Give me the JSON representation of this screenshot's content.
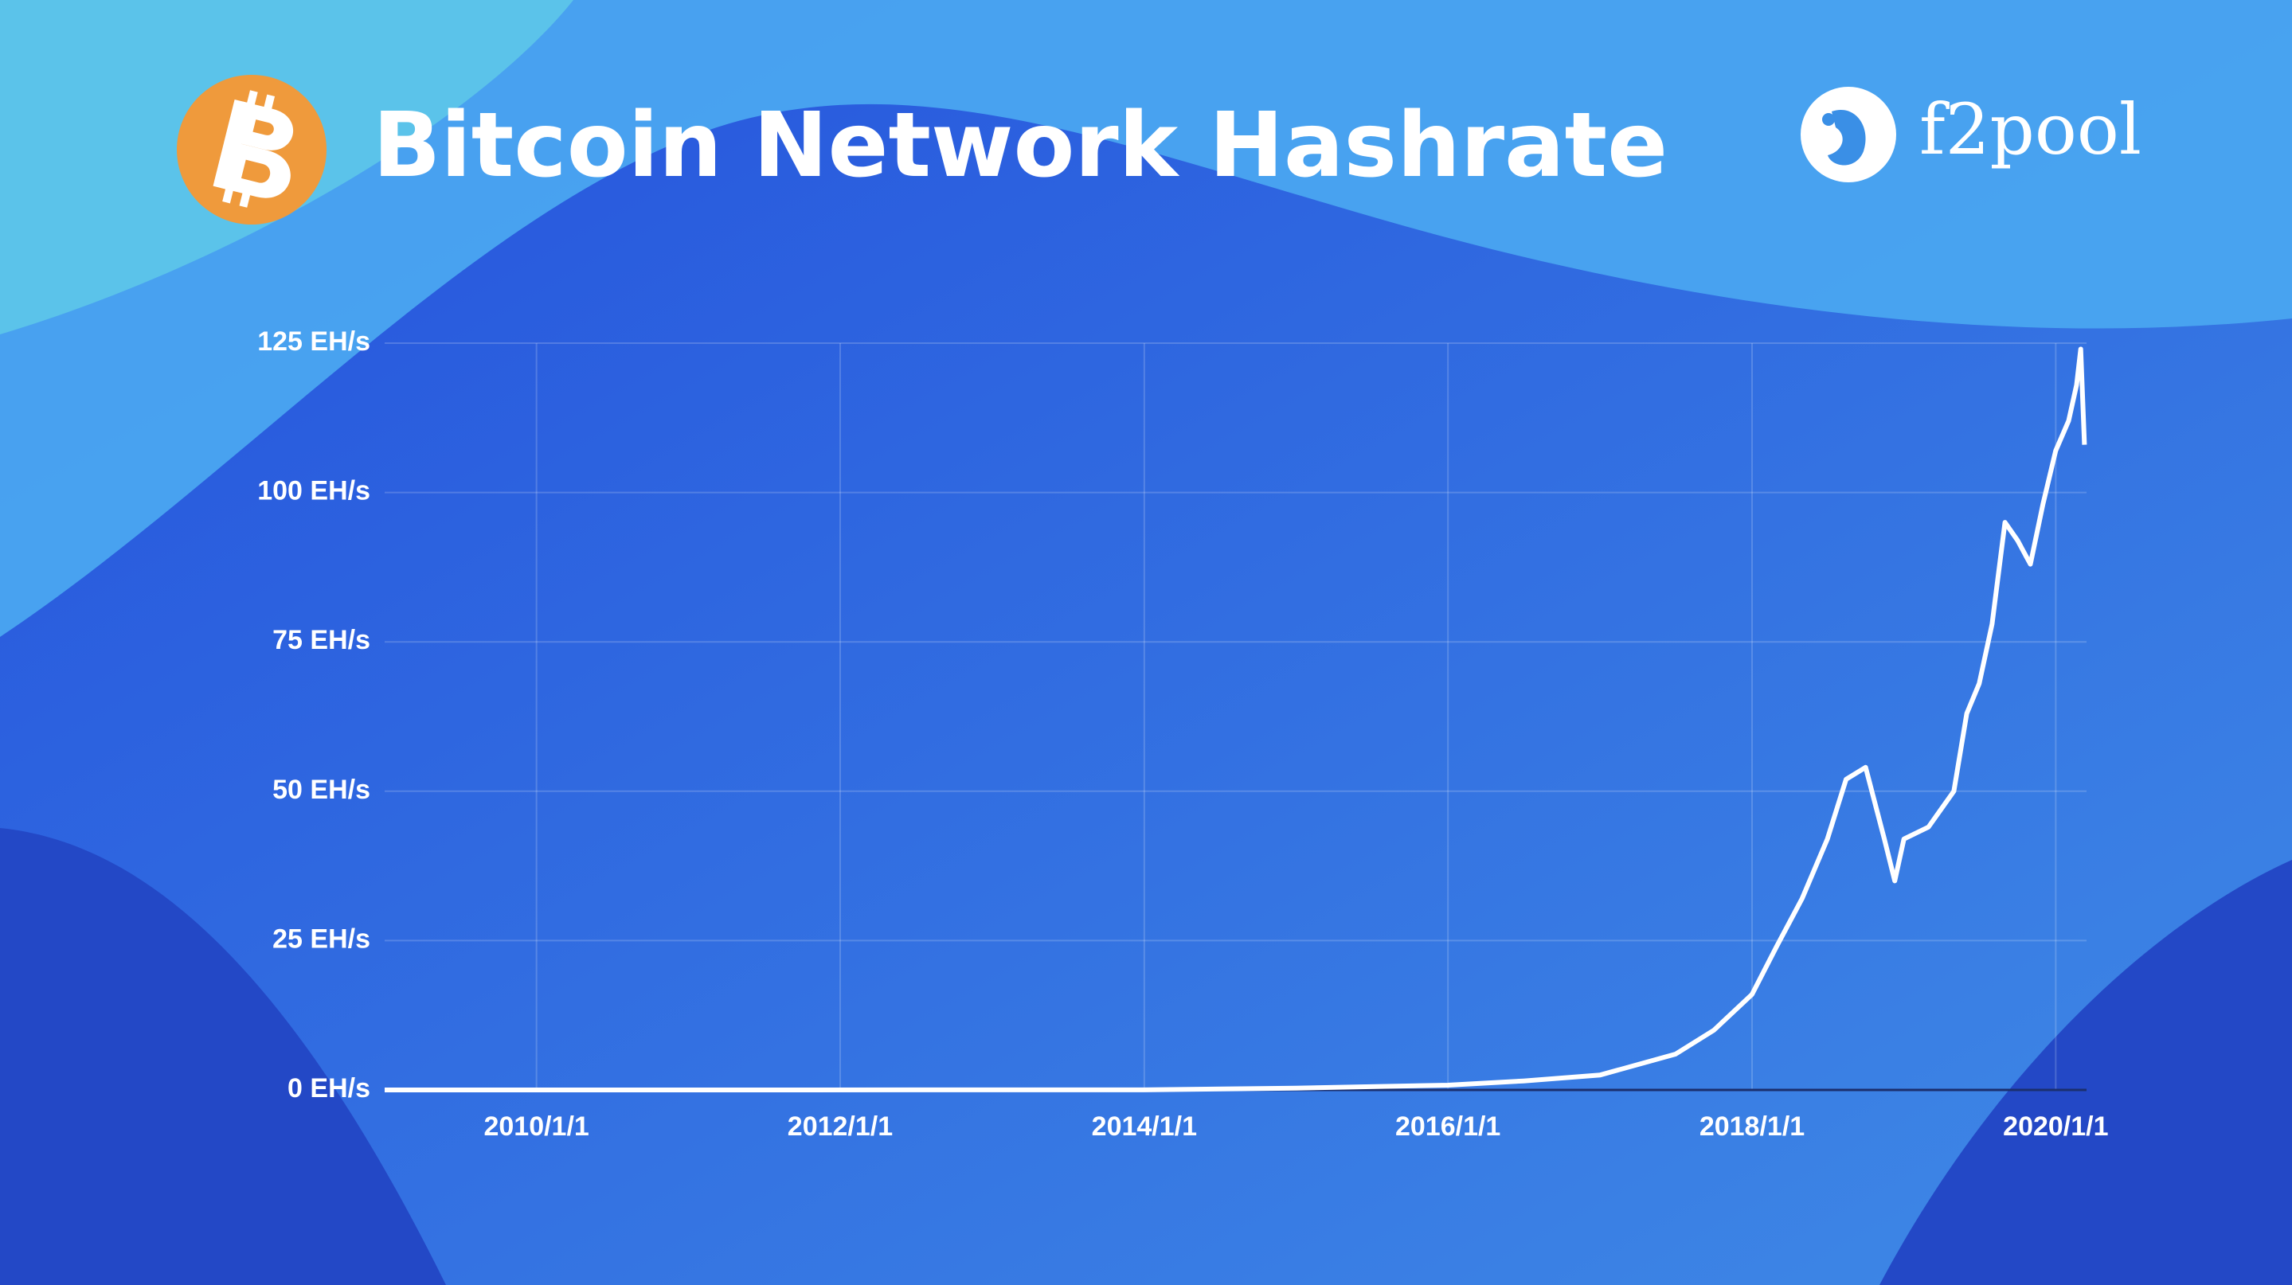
{
  "brand": "f2pool",
  "chart_data": {
    "type": "line",
    "title": "Bitcoin Network Hashrate",
    "x": [
      "2009/1/1",
      "2014/1/1",
      "2015/1/1",
      "2016/1/1",
      "2016/7/1",
      "2017/1/1",
      "2017/7/1",
      "2017/10/1",
      "2018/1/1",
      "2018/3/1",
      "2018/5/1",
      "2018/7/1",
      "2018/8/15",
      "2018/10/1",
      "2018/11/15",
      "2018/12/10",
      "2019/1/1",
      "2019/3/1",
      "2019/5/1",
      "2019/6/1",
      "2019/7/1",
      "2019/8/1",
      "2019/9/1",
      "2019/10/1",
      "2019/11/1",
      "2019/12/1",
      "2020/1/1",
      "2020/2/1",
      "2020/2/20",
      "2020/3/1",
      "2020/3/10"
    ],
    "series": [
      {
        "name": "Hashrate",
        "color": "#ffffff",
        "values": [
          0,
          0.01,
          0.3,
          0.8,
          1.5,
          2.5,
          6,
          10,
          16,
          24,
          32,
          42,
          52,
          54,
          42,
          35,
          42,
          44,
          50,
          63,
          68,
          78,
          95,
          92,
          88,
          98,
          107,
          112,
          118,
          124,
          108
        ]
      }
    ],
    "xlim": [
      "2009/1/1",
      "2020/3/15"
    ],
    "xticks": [
      "2010/1/1",
      "2012/1/1",
      "2014/1/1",
      "2016/1/1",
      "2018/1/1",
      "2020/1/1"
    ],
    "ylim": [
      0,
      125
    ],
    "yticks": [
      {
        "value": 0,
        "label": "0 EH/s"
      },
      {
        "value": 25,
        "label": "25 EH/s"
      },
      {
        "value": 50,
        "label": "50 EH/s"
      },
      {
        "value": 75,
        "label": "75 EH/s"
      },
      {
        "value": 100,
        "label": "100 EH/s"
      },
      {
        "value": 125,
        "label": "125 EH/s"
      }
    ],
    "grid": true
  }
}
